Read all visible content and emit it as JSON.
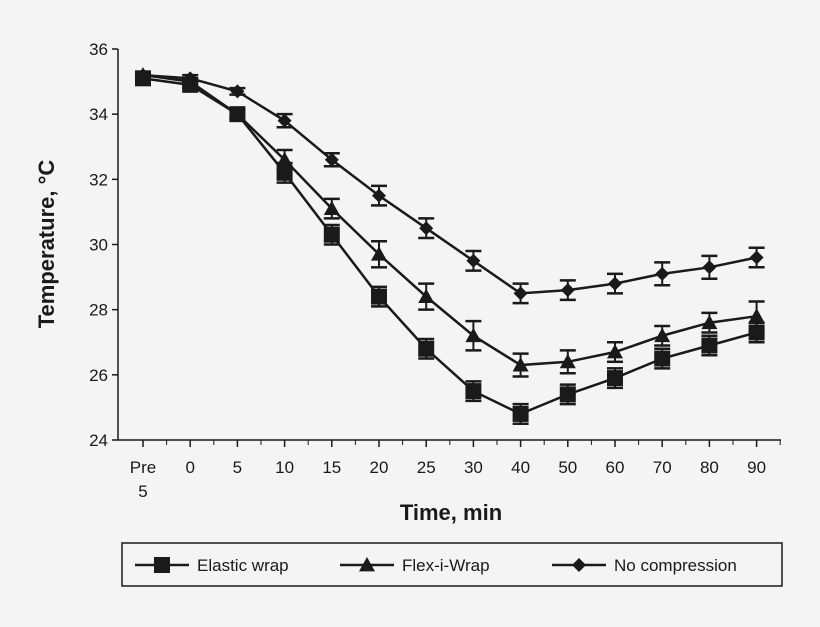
{
  "chart_data": {
    "type": "line",
    "xlabel": "Time, min",
    "ylabel": "Temperature, °C",
    "categories": [
      "Pre 5",
      "0",
      "5",
      "10",
      "15",
      "20",
      "25",
      "30",
      "40",
      "50",
      "60",
      "70",
      "80",
      "90"
    ],
    "ylim": [
      24,
      36
    ],
    "yticks": [
      "24",
      "26",
      "28",
      "30",
      "32",
      "34",
      "36"
    ],
    "grid": false,
    "legend_position": "bottom",
    "error_bars": true,
    "series": [
      {
        "name": "Elastic wrap",
        "marker": "square",
        "values": [
          35.1,
          34.9,
          34.0,
          32.2,
          30.3,
          28.4,
          26.8,
          25.5,
          24.8,
          25.4,
          25.9,
          26.5,
          26.9,
          27.3
        ],
        "error": [
          0.1,
          0.1,
          0.15,
          0.3,
          0.3,
          0.3,
          0.3,
          0.3,
          0.3,
          0.3,
          0.3,
          0.3,
          0.3,
          0.3
        ]
      },
      {
        "name": "Flex-i-Wrap",
        "marker": "triangle",
        "values": [
          35.2,
          35.0,
          34.0,
          32.6,
          31.1,
          29.7,
          28.4,
          27.2,
          26.3,
          26.4,
          26.7,
          27.2,
          27.6,
          27.8
        ],
        "error": [
          0.1,
          0.1,
          0.15,
          0.3,
          0.3,
          0.4,
          0.4,
          0.45,
          0.35,
          0.35,
          0.3,
          0.3,
          0.3,
          0.45
        ]
      },
      {
        "name": "No compression",
        "marker": "diamond",
        "values": [
          35.2,
          35.1,
          34.7,
          33.8,
          32.6,
          31.5,
          30.5,
          29.5,
          28.5,
          28.6,
          28.8,
          29.1,
          29.3,
          29.6
        ],
        "error": [
          0.1,
          0.1,
          0.1,
          0.2,
          0.2,
          0.3,
          0.3,
          0.3,
          0.3,
          0.3,
          0.3,
          0.35,
          0.35,
          0.3
        ]
      }
    ]
  }
}
